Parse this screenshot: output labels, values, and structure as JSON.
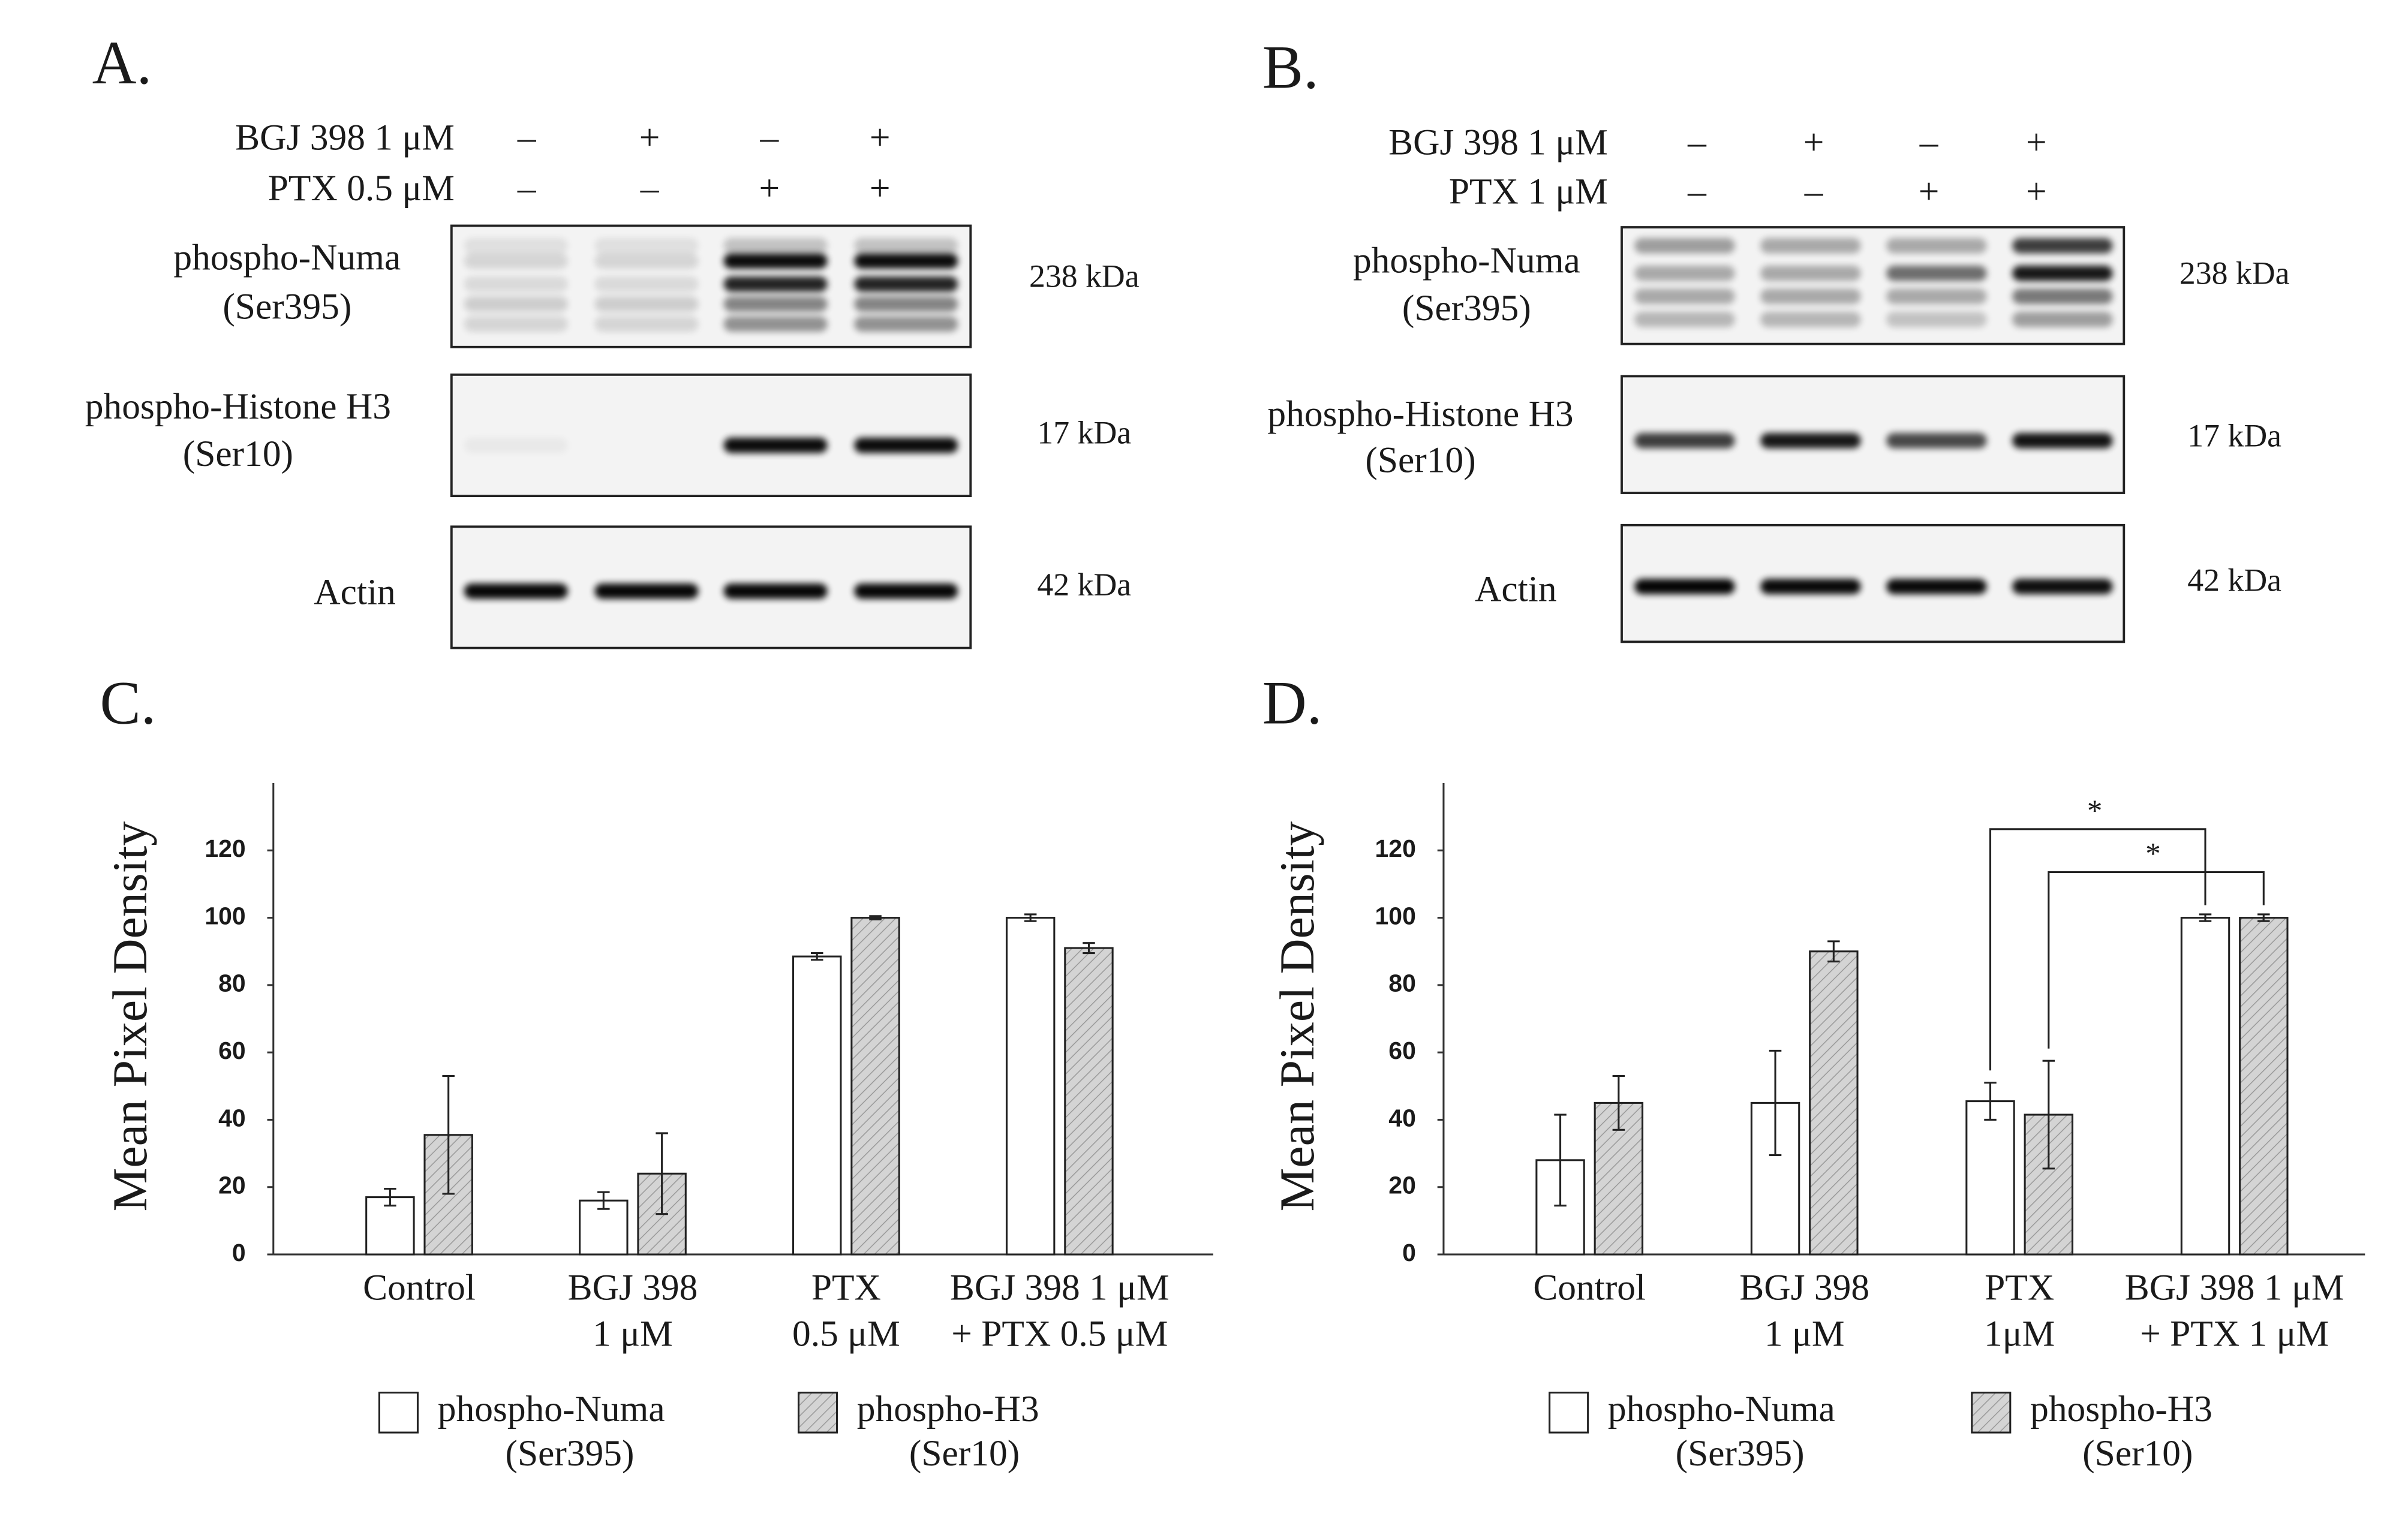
{
  "panels": [
    {
      "label": "A.",
      "treatments": [
        {
          "name": "BGJ 398 1 μM",
          "signs": [
            "–",
            "+",
            "–",
            "+"
          ]
        },
        {
          "name": "PTX 0.5 μM",
          "signs": [
            "–",
            "–",
            "+",
            "+"
          ]
        }
      ],
      "blots": [
        {
          "name": [
            "phospho-Numa",
            "(Ser395)"
          ],
          "size": "238 kDa"
        },
        {
          "name": [
            "phospho-Histone H3",
            "(Ser10)"
          ],
          "size": "17 kDa"
        },
        {
          "name": [
            "Actin"
          ],
          "size": "42 kDa"
        }
      ]
    },
    {
      "label": "B.",
      "treatments": [
        {
          "name": "BGJ 398 1 μM",
          "signs": [
            "–",
            "+",
            "–",
            "+"
          ]
        },
        {
          "name": "PTX 1 μM",
          "signs": [
            "–",
            "–",
            "+",
            "+"
          ]
        }
      ],
      "blots": [
        {
          "name": [
            "phospho-Numa",
            "(Ser395)"
          ],
          "size": "238 kDa"
        },
        {
          "name": [
            "phospho-Histone H3",
            "(Ser10)"
          ],
          "size": "17 kDa"
        },
        {
          "name": [
            "Actin"
          ],
          "size": "42 kDa"
        }
      ]
    }
  ],
  "chart_data": [
    {
      "type": "bar",
      "label": "C.",
      "y_label": "Mean Pixel Density",
      "categories": [
        [
          "Control"
        ],
        [
          "BGJ 398",
          "1 μM"
        ],
        [
          "PTX",
          "0.5 μM"
        ],
        [
          "BGJ 398 1 μM",
          "+ PTX 0.5 μM"
        ]
      ],
      "series": [
        {
          "name": [
            "phospho-Numa",
            "(Ser395)"
          ],
          "color": "#ffffff",
          "values": [
            17,
            16,
            88.5,
            100
          ],
          "errors": [
            2.5,
            2.5,
            1,
            1
          ]
        },
        {
          "name": [
            "phospho-H3",
            "(Ser10)"
          ],
          "color": "#d4d4d4",
          "values": [
            35.5,
            24,
            100,
            91
          ],
          "errors": [
            17.5,
            12,
            0.5,
            1.5
          ]
        }
      ],
      "ylim": [
        0,
        140
      ],
      "yticks": [
        0,
        20,
        40,
        60,
        80,
        100,
        120
      ]
    },
    {
      "type": "bar",
      "label": "D.",
      "y_label": "Mean Pixel Density",
      "categories": [
        [
          "Control"
        ],
        [
          "BGJ 398",
          "1 μM"
        ],
        [
          "PTX",
          "1μM"
        ],
        [
          "BGJ 398 1 μM",
          "+ PTX 1 μM"
        ]
      ],
      "series": [
        {
          "name": [
            "phospho-Numa",
            "(Ser395)"
          ],
          "color": "#ffffff",
          "values": [
            28,
            45,
            45.5,
            100
          ],
          "errors": [
            13.5,
            15.5,
            5.5,
            1
          ]
        },
        {
          "name": [
            "phospho-H3",
            "(Ser10)"
          ],
          "color": "#d4d4d4",
          "values": [
            45,
            90,
            41.5,
            100
          ],
          "errors": [
            8,
            3,
            16,
            1
          ]
        }
      ],
      "ylim": [
        0,
        140
      ],
      "yticks": [
        0,
        20,
        40,
        60,
        80,
        100,
        120
      ],
      "annotations": [
        "*",
        "*"
      ]
    }
  ]
}
